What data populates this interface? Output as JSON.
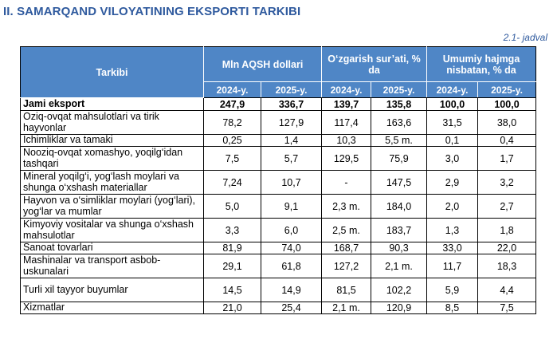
{
  "title": "II. SAMARQAND VILOYATINING EKSPORTI TARKIBI",
  "table_number": "2.1- jadval",
  "headers": {
    "composition": "Tarkibi",
    "mln_usd": "Mln AQSH dollari",
    "change_rate": "O‘zgarish sur’ati, % da",
    "share": "Umumiy hajmga nisbatan, % da",
    "years": [
      "2024-y.",
      "2025-y.",
      "2024-y.",
      "2025-y.",
      "2024-y.",
      "2025-y."
    ]
  },
  "rows": [
    {
      "name": "Jami eksport",
      "values": [
        "247,9",
        "336,7",
        "139,7",
        "135,8",
        "100,0",
        "100,0"
      ]
    },
    {
      "name": "Oziq-ovqat mahsulotlari va tirik hayvonlar",
      "values": [
        "78,2",
        "127,9",
        "117,4",
        "163,6",
        "31,5",
        "38,0"
      ]
    },
    {
      "name": "Ichimliklar va tamaki",
      "values": [
        "0,25",
        "1,4",
        "10,3",
        "5,5 m.",
        "0,1",
        "0,4"
      ]
    },
    {
      "name": "Nooziq-ovqat xomashyo, yoqilg‘idan tashqari",
      "values": [
        "7,5",
        "5,7",
        "129,5",
        "75,9",
        "3,0",
        "1,7"
      ]
    },
    {
      "name": "Mineral yoqilg‘i, yog‘lash moylari va shunga o‘xshash materiallar",
      "values": [
        "7,24",
        "10,7",
        "-",
        "147,5",
        "2,9",
        "3,2"
      ]
    },
    {
      "name": "Hayvon va o‘simliklar moylari (yog‘lari), yog‘lar va mumlar",
      "values": [
        "5,0",
        "9,1",
        "2,3 m.",
        "184,0",
        "2,0",
        "2,7"
      ]
    },
    {
      "name": "Kimyoviy vositalar va shunga o‘xshash mahsulotlar",
      "values": [
        "3,3",
        "6,0",
        "2,5 m.",
        "183,7",
        "1,3",
        "1,8"
      ]
    },
    {
      "name": "Sanoat tovarlari",
      "values": [
        "81,9",
        "74,0",
        "168,7",
        "90,3",
        "33,0",
        "22,0"
      ]
    },
    {
      "name": "Mashinalar va transport asbob-uskunalari",
      "values": [
        "29,1",
        "61,8",
        "127,2",
        "2,1 m.",
        "11,7",
        "18,3"
      ]
    },
    {
      "name": "Turli xil tayyor buyumlar",
      "values": [
        "14,5",
        "14,9",
        "81,5",
        "102,2",
        "5,9",
        "4,4"
      ]
    },
    {
      "name": "Xizmatlar",
      "values": [
        "21,0",
        "25,4",
        "2,1 m.",
        "120,9",
        "8,5",
        "7,5"
      ]
    }
  ]
}
